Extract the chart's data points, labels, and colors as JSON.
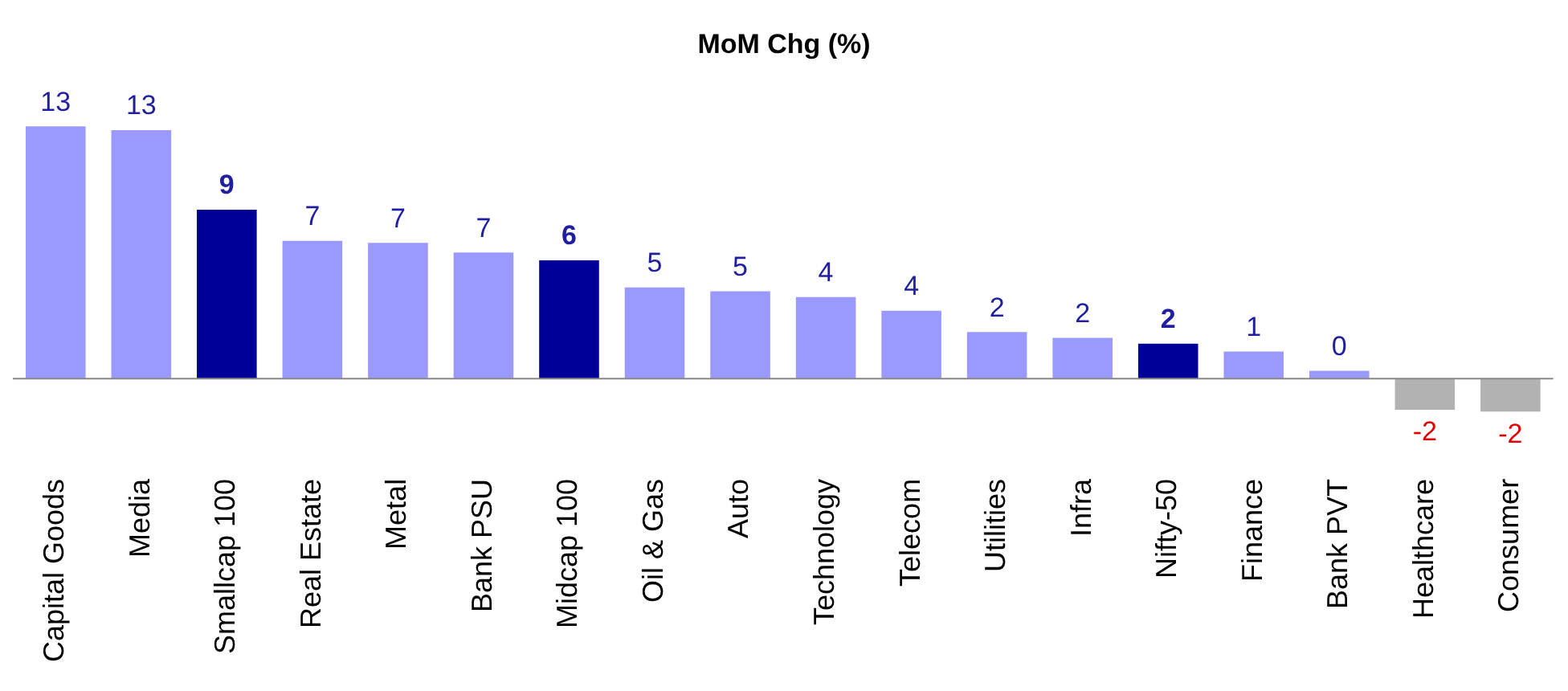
{
  "chart_data": {
    "type": "bar",
    "title": "MoM Chg (%)",
    "categories": [
      "Capital Goods",
      "Media",
      "Smallcap 100",
      "Real Estate",
      "Metal",
      "Bank PSU",
      "Midcap 100",
      "Oil & Gas",
      "Auto",
      "Technology",
      "Telecom",
      "Utilities",
      "Infra",
      "Nifty-50",
      "Finance",
      "Bank PVT",
      "Healthcare",
      "Consumer"
    ],
    "values": [
      13.0,
      12.8,
      8.7,
      7.1,
      7.0,
      6.5,
      6.1,
      4.7,
      4.5,
      4.2,
      3.5,
      2.4,
      2.1,
      1.8,
      1.4,
      0.4,
      -1.6,
      -1.7
    ],
    "value_labels": [
      "13",
      "13",
      "9",
      "7",
      "7",
      "7",
      "6",
      "5",
      "5",
      "4",
      "4",
      "2",
      "2",
      "2",
      "1",
      "0",
      "-2",
      "-2"
    ],
    "colors": [
      "#9999ff",
      "#9999ff",
      "#000099",
      "#9999ff",
      "#9999ff",
      "#9999ff",
      "#000099",
      "#9999ff",
      "#9999ff",
      "#9999ff",
      "#9999ff",
      "#9999ff",
      "#9999ff",
      "#000099",
      "#9999ff",
      "#9999ff",
      "#b2b2b2",
      "#b2b2b2"
    ],
    "grid": false,
    "legend": false
  }
}
